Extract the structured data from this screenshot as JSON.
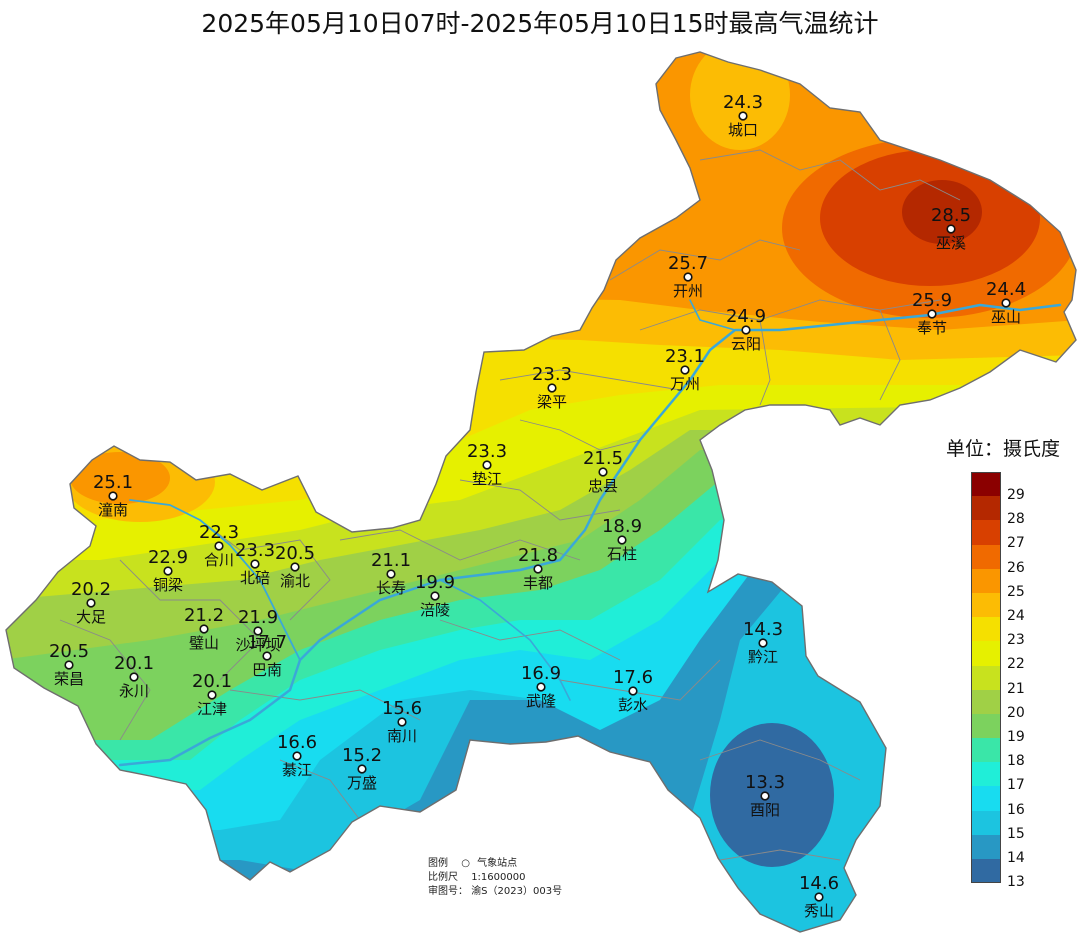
{
  "title": "2025年05月10日07时-2025年05月10日15时最高气温统计",
  "legend": {
    "unit_label": "单位：摄氏度",
    "levels": [
      {
        "value": "29",
        "color": "#8b0000"
      },
      {
        "value": "28",
        "color": "#b42800"
      },
      {
        "value": "27",
        "color": "#d84000"
      },
      {
        "value": "26",
        "color": "#f06a00"
      },
      {
        "value": "25",
        "color": "#fa9600"
      },
      {
        "value": "24",
        "color": "#fcbc04"
      },
      {
        "value": "23",
        "color": "#f5e000"
      },
      {
        "value": "22",
        "color": "#e6f000"
      },
      {
        "value": "21",
        "color": "#c8e21e"
      },
      {
        "value": "20",
        "color": "#a0d046"
      },
      {
        "value": "19",
        "color": "#7cd25e"
      },
      {
        "value": "18",
        "color": "#3ae6a8"
      },
      {
        "value": "17",
        "color": "#20eed8"
      },
      {
        "value": "16",
        "color": "#18dcf0"
      },
      {
        "value": "15",
        "color": "#1cc4e0"
      },
      {
        "value": "14",
        "color": "#2898c4"
      },
      {
        "value": "13",
        "color": "#306aa2"
      }
    ]
  },
  "notes": {
    "legend_caption": "图例",
    "station_label": "气象站点",
    "scale_caption": "比例尺",
    "scale_value": "1:1600000",
    "approval_caption": "审图号：",
    "approval_value": "渝S（2023）003号"
  },
  "stations": [
    {
      "name": "城口",
      "value": "24.3"
    },
    {
      "name": "巫溪",
      "value": "28.5"
    },
    {
      "name": "开州",
      "value": "25.7"
    },
    {
      "name": "云阳",
      "value": "24.9"
    },
    {
      "name": "奉节",
      "value": "25.9"
    },
    {
      "name": "巫山",
      "value": "24.4"
    },
    {
      "name": "万州",
      "value": "23.1"
    },
    {
      "name": "梁平",
      "value": "23.3"
    },
    {
      "name": "垫江",
      "value": "23.3"
    },
    {
      "name": "忠县",
      "value": "21.5"
    },
    {
      "name": "石柱",
      "value": "18.9"
    },
    {
      "name": "潼南",
      "value": "25.1"
    },
    {
      "name": "合川",
      "value": "22.3"
    },
    {
      "name": "铜梁",
      "value": "22.9"
    },
    {
      "name": "北碚",
      "value": "23.3"
    },
    {
      "name": "渝北",
      "value": "20.5"
    },
    {
      "name": "长寿",
      "value": "21.1"
    },
    {
      "name": "涪陵",
      "value": "19.9"
    },
    {
      "name": "丰都",
      "value": "21.8"
    },
    {
      "name": "大足",
      "value": "20.2"
    },
    {
      "name": "璧山",
      "value": "21.2"
    },
    {
      "name": "沙坪坝",
      "value": "21.9"
    },
    {
      "name": "荣昌",
      "value": "20.5"
    },
    {
      "name": "永川",
      "value": "20.1"
    },
    {
      "name": "江津",
      "value": "20.1"
    },
    {
      "name": "巴南",
      "value": "17.7"
    },
    {
      "name": "武隆",
      "value": "16.9"
    },
    {
      "name": "彭水",
      "value": "17.6"
    },
    {
      "name": "黔江",
      "value": "14.3"
    },
    {
      "name": "南川",
      "value": "15.6"
    },
    {
      "name": "綦江",
      "value": "16.6"
    },
    {
      "name": "万盛",
      "value": "15.2"
    },
    {
      "name": "酉阳",
      "value": "13.3"
    },
    {
      "name": "秀山",
      "value": "14.6"
    }
  ]
}
